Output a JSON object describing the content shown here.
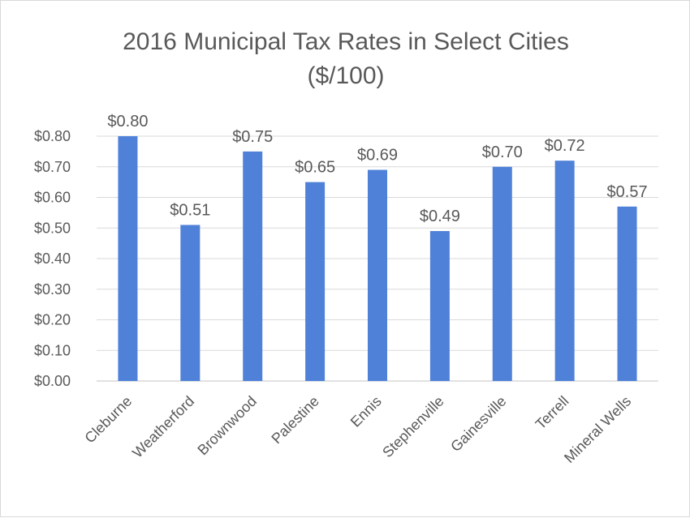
{
  "chart_data": {
    "type": "bar",
    "title": "2016 Municipal Tax Rates in Select Cities",
    "subtitle": "($/100)",
    "categories": [
      "Cleburne",
      "Weatherford",
      "Brownwood",
      "Palestine",
      "Ennis",
      "Stephenville",
      "Gainesville",
      "Terrell",
      "Mineral Wells"
    ],
    "values": [
      0.8,
      0.51,
      0.75,
      0.65,
      0.69,
      0.49,
      0.7,
      0.72,
      0.57
    ],
    "value_labels": [
      "$0.80",
      "$0.51",
      "$0.75",
      "$0.65",
      "$0.69",
      "$0.49",
      "$0.70",
      "$0.72",
      "$0.57"
    ],
    "yticks": [
      0,
      0.1,
      0.2,
      0.3,
      0.4,
      0.5,
      0.6,
      0.7,
      0.8
    ],
    "ytick_labels": [
      "$0.00",
      "$0.10",
      "$0.20",
      "$0.30",
      "$0.40",
      "$0.50",
      "$0.60",
      "$0.70",
      "$0.80"
    ],
    "ylim": [
      0,
      0.8
    ],
    "grid": true,
    "legend": "none",
    "bar_color": "#4f81d9"
  }
}
